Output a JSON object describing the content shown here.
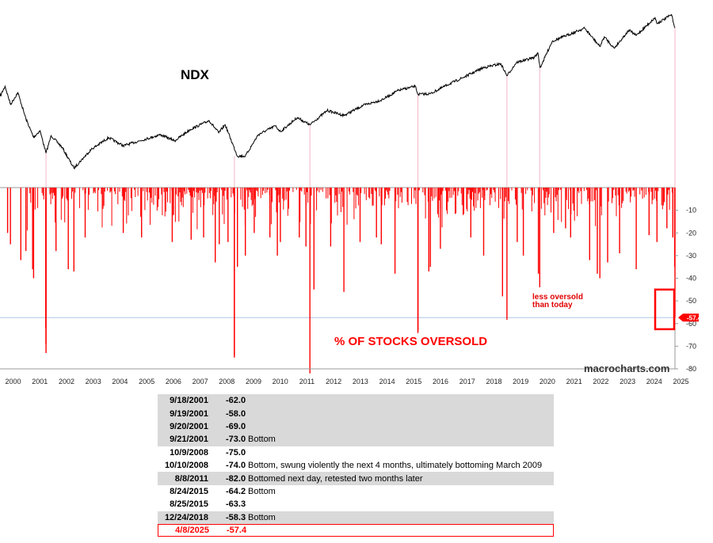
{
  "chart_data": [
    {
      "type": "line",
      "title": "NDX",
      "x_range": [
        "2000-01-01",
        "2025-04-08"
      ],
      "series": [
        {
          "values": [
            {
              "x": "2000-01-03",
              "y": 3790
            },
            {
              "x": "2000-03-10",
              "y": 4704
            },
            {
              "x": "2000-05-24",
              "y": 3170
            },
            {
              "x": "2000-09-01",
              "y": 4100
            },
            {
              "x": "2000-12-20",
              "y": 2330
            },
            {
              "x": "2001-04-04",
              "y": 1560
            },
            {
              "x": "2001-07-01",
              "y": 1800
            },
            {
              "x": "2001-09-21",
              "y": 1110
            },
            {
              "x": "2001-12-01",
              "y": 1620
            },
            {
              "x": "2002-05-01",
              "y": 1250
            },
            {
              "x": "2002-10-08",
              "y": 800
            },
            {
              "x": "2003-06-01",
              "y": 1200
            },
            {
              "x": "2004-01-26",
              "y": 1550
            },
            {
              "x": "2004-08-12",
              "y": 1300
            },
            {
              "x": "2005-04-01",
              "y": 1450
            },
            {
              "x": "2005-12-30",
              "y": 1650
            },
            {
              "x": "2006-07-18",
              "y": 1450
            },
            {
              "x": "2007-02-15",
              "y": 1850
            },
            {
              "x": "2007-10-31",
              "y": 2240
            },
            {
              "x": "2008-03-10",
              "y": 1720
            },
            {
              "x": "2008-06-05",
              "y": 2050
            },
            {
              "x": "2008-11-20",
              "y": 1040
            },
            {
              "x": "2009-03-09",
              "y": 1040
            },
            {
              "x": "2009-09-01",
              "y": 1650
            },
            {
              "x": "2010-04-23",
              "y": 2000
            },
            {
              "x": "2010-07-01",
              "y": 1760
            },
            {
              "x": "2011-02-16",
              "y": 2390
            },
            {
              "x": "2011-08-08",
              "y": 2040
            },
            {
              "x": "2012-04-01",
              "y": 2790
            },
            {
              "x": "2012-11-15",
              "y": 2500
            },
            {
              "x": "2013-08-01",
              "y": 3100
            },
            {
              "x": "2014-04-15",
              "y": 3500
            },
            {
              "x": "2014-11-30",
              "y": 4300
            },
            {
              "x": "2015-07-20",
              "y": 4700
            },
            {
              "x": "2015-08-24",
              "y": 3950
            },
            {
              "x": "2016-02-11",
              "y": 4000
            },
            {
              "x": "2016-10-01",
              "y": 4850
            },
            {
              "x": "2017-06-01",
              "y": 5800
            },
            {
              "x": "2018-01-26",
              "y": 7000
            },
            {
              "x": "2018-10-01",
              "y": 7650
            },
            {
              "x": "2018-12-24",
              "y": 5900
            },
            {
              "x": "2019-05-01",
              "y": 7850
            },
            {
              "x": "2019-12-31",
              "y": 8750
            },
            {
              "x": "2020-02-19",
              "y": 9700
            },
            {
              "x": "2020-03-20",
              "y": 7000
            },
            {
              "x": "2020-09-02",
              "y": 12400
            },
            {
              "x": "2021-02-12",
              "y": 13800
            },
            {
              "x": "2021-11-19",
              "y": 16500
            },
            {
              "x": "2022-06-16",
              "y": 11100
            },
            {
              "x": "2022-08-16",
              "y": 13700
            },
            {
              "x": "2022-12-28",
              "y": 10700
            },
            {
              "x": "2023-07-19",
              "y": 15800
            },
            {
              "x": "2023-10-26",
              "y": 14100
            },
            {
              "x": "2024-07-10",
              "y": 20700
            },
            {
              "x": "2024-08-05",
              "y": 18200
            },
            {
              "x": "2025-02-19",
              "y": 22100
            },
            {
              "x": "2025-04-08",
              "y": 16600
            }
          ]
        }
      ]
    },
    {
      "type": "bar",
      "title": "% OF STOCKS OVERSOLD",
      "ylim": [
        -80,
        0
      ],
      "yticks": [
        "-10",
        "-20",
        "-30",
        "-40",
        "-50",
        "-60",
        "-70",
        "-80"
      ],
      "x_ticks": [
        "2000",
        "2001",
        "2002",
        "2003",
        "2004",
        "2005",
        "2006",
        "2007",
        "2008",
        "2009",
        "2010",
        "2011",
        "2012",
        "2013",
        "2014",
        "2015",
        "2016",
        "2017",
        "2018",
        "2019",
        "2020",
        "2021",
        "2022",
        "2023",
        "2024",
        "2025"
      ],
      "reference_line": -57.4,
      "current_value_label": "-57.4",
      "series": [
        {
          "values": [
            {
              "x": "2000-04-14",
              "y": -20
            },
            {
              "x": "2000-05-23",
              "y": -25
            },
            {
              "x": "2000-10-12",
              "y": -32
            },
            {
              "x": "2000-12-20",
              "y": -28
            },
            {
              "x": "2001-03-22",
              "y": -36
            },
            {
              "x": "2001-04-04",
              "y": -40
            },
            {
              "x": "2001-09-18",
              "y": -62.0
            },
            {
              "x": "2001-09-19",
              "y": -58.0
            },
            {
              "x": "2001-09-20",
              "y": -69.0
            },
            {
              "x": "2001-09-21",
              "y": -73.0
            },
            {
              "x": "2002-02-05",
              "y": -28
            },
            {
              "x": "2002-07-23",
              "y": -36
            },
            {
              "x": "2002-10-08",
              "y": -37
            },
            {
              "x": "2003-03-10",
              "y": -22
            },
            {
              "x": "2004-08-12",
              "y": -20
            },
            {
              "x": "2005-04-20",
              "y": -22
            },
            {
              "x": "2006-06-13",
              "y": -24
            },
            {
              "x": "2007-02-27",
              "y": -23
            },
            {
              "x": "2007-08-16",
              "y": -22
            },
            {
              "x": "2008-01-22",
              "y": -33
            },
            {
              "x": "2008-03-17",
              "y": -25
            },
            {
              "x": "2008-07-15",
              "y": -24
            },
            {
              "x": "2008-10-09",
              "y": -75.0
            },
            {
              "x": "2008-10-10",
              "y": -74.0
            },
            {
              "x": "2008-11-20",
              "y": -35
            },
            {
              "x": "2009-03-09",
              "y": -30
            },
            {
              "x": "2009-07-08",
              "y": -20
            },
            {
              "x": "2010-02-08",
              "y": -22
            },
            {
              "x": "2010-05-20",
              "y": -30
            },
            {
              "x": "2010-07-01",
              "y": -24
            },
            {
              "x": "2011-03-16",
              "y": -22
            },
            {
              "x": "2011-06-15",
              "y": -26
            },
            {
              "x": "2011-08-08",
              "y": -82.0
            },
            {
              "x": "2011-10-03",
              "y": -45
            },
            {
              "x": "2012-05-18",
              "y": -26
            },
            {
              "x": "2012-11-15",
              "y": -46
            },
            {
              "x": "2013-06-24",
              "y": -24
            },
            {
              "x": "2014-02-03",
              "y": -22
            },
            {
              "x": "2014-04-11",
              "y": -25
            },
            {
              "x": "2014-10-15",
              "y": -38
            },
            {
              "x": "2015-08-24",
              "y": -64.2
            },
            {
              "x": "2015-08-25",
              "y": -63.3
            },
            {
              "x": "2016-01-20",
              "y": -37
            },
            {
              "x": "2016-02-11",
              "y": -35
            },
            {
              "x": "2016-06-27",
              "y": -27
            },
            {
              "x": "2017-08-17",
              "y": -22
            },
            {
              "x": "2018-02-08",
              "y": -30
            },
            {
              "x": "2018-10-24",
              "y": -48
            },
            {
              "x": "2018-12-24",
              "y": -58.3
            },
            {
              "x": "2019-05-13",
              "y": -24
            },
            {
              "x": "2019-08-05",
              "y": -30
            },
            {
              "x": "2020-02-27",
              "y": -38
            },
            {
              "x": "2020-03-16",
              "y": -44
            },
            {
              "x": "2020-09-23",
              "y": -20
            },
            {
              "x": "2021-03-04",
              "y": -18
            },
            {
              "x": "2021-05-12",
              "y": -22
            },
            {
              "x": "2022-01-27",
              "y": -32
            },
            {
              "x": "2022-05-12",
              "y": -38
            },
            {
              "x": "2022-06-16",
              "y": -40
            },
            {
              "x": "2022-09-30",
              "y": -33
            },
            {
              "x": "2023-03-13",
              "y": -29
            },
            {
              "x": "2023-10-26",
              "y": -36
            },
            {
              "x": "2024-04-19",
              "y": -21
            },
            {
              "x": "2024-08-05",
              "y": -24
            },
            {
              "x": "2024-12-18",
              "y": -18
            },
            {
              "x": "2025-03-10",
              "y": -22
            },
            {
              "x": "2025-04-04",
              "y": -35
            },
            {
              "x": "2025-04-08",
              "y": -57.4
            }
          ]
        }
      ]
    }
  ],
  "annotations": {
    "ndx_label": "NDX",
    "oversold_label": "% OF STOCKS OVERSOLD",
    "note_line1": "less oversold",
    "note_line2": "than today",
    "watermark": "macrocharts.com",
    "current_value": "-57.4"
  },
  "colors": {
    "line": "#000000",
    "bars": "#ff0000",
    "guide": "#f4b6c6",
    "reference": "#aac6ea",
    "highlight_box": "#ff0000"
  },
  "events_table": [
    {
      "date": "9/18/2001",
      "value": "-62.0",
      "note": "",
      "shaded": true
    },
    {
      "date": "9/19/2001",
      "value": "-58.0",
      "note": "",
      "shaded": true
    },
    {
      "date": "9/20/2001",
      "value": "-69.0",
      "note": "",
      "shaded": true
    },
    {
      "date": "9/21/2001",
      "value": "-73.0",
      "note": "Bottom",
      "shaded": true
    },
    {
      "date": "10/9/2008",
      "value": "-75.0",
      "note": "",
      "shaded": false
    },
    {
      "date": "10/10/2008",
      "value": "-74.0",
      "note": "Bottom, swung violently the next  4 months, ultimately bottoming March 2009",
      "shaded": false
    },
    {
      "date": "8/8/2011",
      "value": "-82.0",
      "note": "Bottomed next day, retested two months later",
      "shaded": true
    },
    {
      "date": "8/24/2015",
      "value": "-64.2",
      "note": "Bottom",
      "shaded": false
    },
    {
      "date": "8/25/2015",
      "value": "-63.3",
      "note": "",
      "shaded": false
    },
    {
      "date": "12/24/2018",
      "value": "-58.3",
      "note": "Bottom",
      "shaded": true
    },
    {
      "date": "4/8/2025",
      "value": "-57.4",
      "note": "",
      "shaded": false,
      "highlight": true
    }
  ]
}
